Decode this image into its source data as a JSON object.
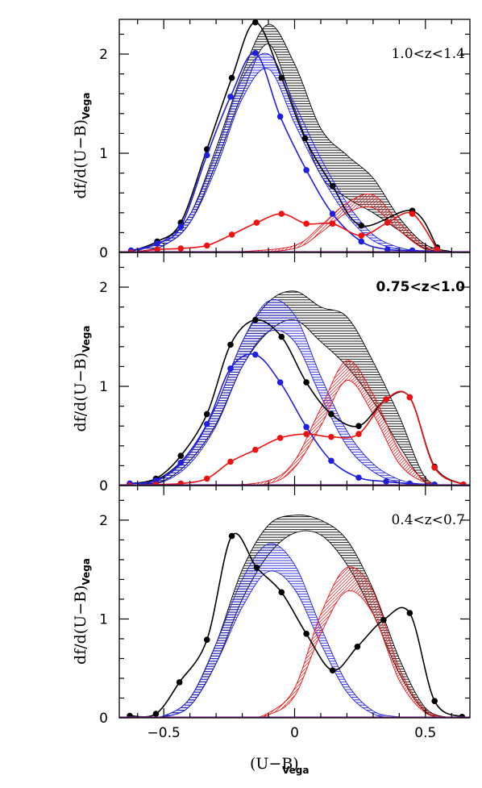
{
  "figure": {
    "xlabel_main": "(U−B)",
    "xlabel_sub": "Vega",
    "ylabel_main": "df/d(U−B)",
    "ylabel_sub": "Vega",
    "colors": {
      "total": "#000000",
      "blue": "#1f1fe0",
      "red": "#ee1111",
      "axis": "#000000"
    }
  },
  "chart_data": [
    {
      "type": "line",
      "panel_label": "1.0<z<1.4",
      "label_bold": false,
      "xlim": [
        -0.67,
        0.67
      ],
      "ylim": [
        0,
        2.35
      ],
      "xticks": [
        -0.5,
        0,
        0.5
      ],
      "xtick_labels": [
        "−0.5",
        "0",
        "0.5"
      ],
      "yticks": [
        0,
        1,
        2
      ],
      "ytick_labels": [
        "0",
        "1",
        "2"
      ],
      "show_xtick_labels": false,
      "series": [
        {
          "color": "total",
          "points": [
            [
              -0.625,
              0.01
            ],
            [
              -0.525,
              0.11
            ],
            [
              -0.435,
              0.3
            ],
            [
              -0.335,
              1.04
            ],
            [
              -0.24,
              1.76
            ],
            [
              -0.15,
              2.32
            ],
            [
              -0.05,
              1.76
            ],
            [
              0.04,
              1.15
            ],
            [
              0.145,
              0.67
            ],
            [
              0.255,
              0.27
            ],
            [
              0.45,
              0.42
            ],
            [
              0.545,
              0.05
            ]
          ]
        },
        {
          "color": "blue",
          "points": [
            [
              -0.625,
              0.02
            ],
            [
              -0.525,
              0.09
            ],
            [
              -0.435,
              0.26
            ],
            [
              -0.335,
              0.98
            ],
            [
              -0.245,
              1.57
            ],
            [
              -0.15,
              2.01
            ],
            [
              -0.055,
              1.37
            ],
            [
              0.045,
              0.83
            ],
            [
              0.145,
              0.39
            ],
            [
              0.255,
              0.11
            ],
            [
              0.355,
              0.03
            ],
            [
              0.45,
              0.02
            ],
            [
              0.545,
              0.01
            ]
          ]
        },
        {
          "color": "red",
          "points": [
            [
              -0.625,
              0.0
            ],
            [
              -0.525,
              0.03
            ],
            [
              -0.435,
              0.04
            ],
            [
              -0.335,
              0.07
            ],
            [
              -0.24,
              0.18
            ],
            [
              -0.145,
              0.3
            ],
            [
              -0.05,
              0.39
            ],
            [
              0.045,
              0.29
            ],
            [
              0.145,
              0.29
            ],
            [
              0.255,
              0.17
            ],
            [
              0.355,
              0.3
            ],
            [
              0.45,
              0.39
            ],
            [
              0.545,
              0.03
            ]
          ]
        }
      ],
      "bands": [
        {
          "color": "total",
          "x": [
            -0.6,
            -0.5,
            -0.4,
            -0.3,
            -0.2,
            -0.1,
            0.0,
            0.1,
            0.2,
            0.3,
            0.4,
            0.5,
            0.6
          ],
          "upper": [
            0.02,
            0.12,
            0.38,
            1.05,
            1.8,
            2.3,
            1.9,
            1.25,
            0.98,
            0.75,
            0.35,
            0.08,
            0.01
          ],
          "lower": [
            0.01,
            0.07,
            0.3,
            0.9,
            1.6,
            2.1,
            1.45,
            0.78,
            0.55,
            0.4,
            0.22,
            0.04,
            0.0
          ]
        },
        {
          "color": "blue",
          "x": [
            -0.6,
            -0.5,
            -0.4,
            -0.3,
            -0.2,
            -0.1,
            0.0,
            0.1,
            0.2,
            0.3,
            0.4,
            0.5,
            0.6
          ],
          "upper": [
            0.02,
            0.12,
            0.38,
            1.0,
            1.75,
            2.0,
            1.5,
            0.95,
            0.5,
            0.18,
            0.05,
            0.01,
            0.0
          ],
          "lower": [
            0.01,
            0.07,
            0.3,
            0.85,
            1.55,
            1.85,
            1.3,
            0.78,
            0.37,
            0.12,
            0.03,
            0.0,
            0.0
          ]
        },
        {
          "color": "red",
          "x": [
            -0.6,
            -0.4,
            -0.2,
            0.0,
            0.1,
            0.2,
            0.3,
            0.4,
            0.5,
            0.6
          ],
          "upper": [
            0.0,
            0.0,
            0.01,
            0.07,
            0.27,
            0.5,
            0.58,
            0.3,
            0.06,
            0.0
          ],
          "lower": [
            0.0,
            0.0,
            0.0,
            0.04,
            0.2,
            0.4,
            0.45,
            0.22,
            0.03,
            0.0
          ]
        }
      ]
    },
    {
      "type": "line",
      "panel_label": "0.75<z<1.0",
      "label_bold": true,
      "xlim": [
        -0.67,
        0.67
      ],
      "ylim": [
        0,
        2.35
      ],
      "xticks": [
        -0.5,
        0,
        0.5
      ],
      "xtick_labels": [
        "−0.5",
        "0",
        "0.5"
      ],
      "yticks": [
        0,
        1,
        2
      ],
      "ytick_labels": [
        "0",
        "1",
        "2"
      ],
      "show_xtick_labels": false,
      "series": [
        {
          "color": "total",
          "points": [
            [
              -0.63,
              0.02
            ],
            [
              -0.53,
              0.07
            ],
            [
              -0.435,
              0.3
            ],
            [
              -0.335,
              0.72
            ],
            [
              -0.245,
              1.42
            ],
            [
              -0.15,
              1.67
            ],
            [
              -0.05,
              1.5
            ],
            [
              0.045,
              1.04
            ],
            [
              0.14,
              0.72
            ],
            [
              0.245,
              0.6
            ],
            [
              0.35,
              0.87
            ],
            [
              0.44,
              0.89
            ],
            [
              0.535,
              0.19
            ],
            [
              0.645,
              0.01
            ]
          ]
        },
        {
          "color": "blue",
          "points": [
            [
              -0.63,
              0.02
            ],
            [
              -0.53,
              0.05
            ],
            [
              -0.435,
              0.23
            ],
            [
              -0.335,
              0.62
            ],
            [
              -0.245,
              1.18
            ],
            [
              -0.15,
              1.32
            ],
            [
              -0.055,
              1.04
            ],
            [
              0.045,
              0.59
            ],
            [
              0.14,
              0.25
            ],
            [
              0.245,
              0.08
            ],
            [
              0.35,
              0.04
            ],
            [
              0.44,
              0.02
            ],
            [
              0.535,
              0.01
            ]
          ]
        },
        {
          "color": "red",
          "points": [
            [
              -0.63,
              0.0
            ],
            [
              -0.53,
              0.01
            ],
            [
              -0.435,
              0.02
            ],
            [
              -0.335,
              0.07
            ],
            [
              -0.245,
              0.24
            ],
            [
              -0.15,
              0.36
            ],
            [
              -0.055,
              0.48
            ],
            [
              0.045,
              0.52
            ],
            [
              0.14,
              0.49
            ],
            [
              0.245,
              0.52
            ],
            [
              0.35,
              0.87
            ],
            [
              0.44,
              0.89
            ],
            [
              0.535,
              0.18
            ],
            [
              0.645,
              0.01
            ]
          ]
        }
      ],
      "bands": [
        {
          "color": "total",
          "x": [
            -0.6,
            -0.5,
            -0.4,
            -0.3,
            -0.2,
            -0.1,
            0.0,
            0.1,
            0.2,
            0.3,
            0.4,
            0.5,
            0.6
          ],
          "upper": [
            0.02,
            0.1,
            0.35,
            0.8,
            1.45,
            1.85,
            1.96,
            1.8,
            1.7,
            1.25,
            0.7,
            0.08,
            0.0
          ],
          "lower": [
            0.01,
            0.05,
            0.25,
            0.62,
            1.2,
            1.55,
            1.67,
            1.45,
            1.2,
            0.85,
            0.4,
            0.03,
            0.0
          ]
        },
        {
          "color": "blue",
          "x": [
            -0.6,
            -0.5,
            -0.4,
            -0.3,
            -0.2,
            -0.1,
            0.0,
            0.1,
            0.2,
            0.3,
            0.4,
            0.5,
            0.6
          ],
          "upper": [
            0.01,
            0.08,
            0.32,
            0.8,
            1.45,
            1.86,
            1.72,
            1.1,
            0.55,
            0.22,
            0.06,
            0.01,
            0.0
          ],
          "lower": [
            0.01,
            0.04,
            0.22,
            0.6,
            1.2,
            1.55,
            1.45,
            0.9,
            0.4,
            0.14,
            0.03,
            0.0,
            0.0
          ]
        },
        {
          "color": "red",
          "x": [
            -0.6,
            -0.3,
            -0.1,
            0.0,
            0.1,
            0.2,
            0.3,
            0.4,
            0.5,
            0.6
          ],
          "upper": [
            0.0,
            0.0,
            0.05,
            0.25,
            0.78,
            1.26,
            0.92,
            0.35,
            0.05,
            0.0
          ],
          "lower": [
            0.0,
            0.0,
            0.02,
            0.18,
            0.6,
            1.06,
            0.72,
            0.22,
            0.03,
            0.0
          ]
        }
      ]
    },
    {
      "type": "line",
      "panel_label": "0.4<z<0.7",
      "label_bold": false,
      "xlim": [
        -0.67,
        0.67
      ],
      "ylim": [
        0,
        2.35
      ],
      "xticks": [
        -0.5,
        0,
        0.5
      ],
      "xtick_labels": [
        "−0.5",
        "0",
        "0.5"
      ],
      "yticks": [
        0,
        1,
        2
      ],
      "ytick_labels": [
        "0",
        "1",
        "2"
      ],
      "show_xtick_labels": true,
      "series": [
        {
          "color": "total",
          "points": [
            [
              -0.63,
              0.02
            ],
            [
              -0.53,
              0.04
            ],
            [
              -0.44,
              0.36
            ],
            [
              -0.335,
              0.79
            ],
            [
              -0.24,
              1.84
            ],
            [
              -0.145,
              1.52
            ],
            [
              -0.05,
              1.27
            ],
            [
              0.045,
              0.85
            ],
            [
              0.145,
              0.48
            ],
            [
              0.24,
              0.72
            ],
            [
              0.34,
              0.99
            ],
            [
              0.44,
              1.06
            ],
            [
              0.535,
              0.17
            ],
            [
              0.64,
              0.01
            ]
          ]
        }
      ],
      "bands": [
        {
          "color": "total",
          "x": [
            -0.6,
            -0.5,
            -0.4,
            -0.3,
            -0.2,
            -0.1,
            0.0,
            0.1,
            0.2,
            0.3,
            0.4,
            0.5,
            0.6
          ],
          "upper": [
            0.0,
            0.02,
            0.2,
            0.75,
            1.5,
            1.95,
            2.05,
            2.0,
            1.8,
            1.3,
            0.6,
            0.1,
            0.0
          ],
          "lower": [
            0.0,
            0.01,
            0.12,
            0.55,
            1.2,
            1.65,
            1.87,
            1.85,
            1.55,
            1.05,
            0.45,
            0.06,
            0.0
          ]
        },
        {
          "color": "blue",
          "x": [
            -0.6,
            -0.5,
            -0.4,
            -0.3,
            -0.2,
            -0.1,
            0.0,
            0.1,
            0.2,
            0.3,
            0.4,
            0.5
          ],
          "upper": [
            0.0,
            0.02,
            0.2,
            0.75,
            1.4,
            1.76,
            1.55,
            0.92,
            0.35,
            0.07,
            0.01,
            0.0
          ],
          "lower": [
            0.0,
            0.01,
            0.12,
            0.55,
            1.12,
            1.48,
            1.3,
            0.75,
            0.26,
            0.04,
            0.0,
            0.0
          ]
        },
        {
          "color": "red",
          "x": [
            -0.5,
            -0.2,
            -0.1,
            0.0,
            0.1,
            0.2,
            0.3,
            0.4,
            0.5,
            0.6
          ],
          "upper": [
            0.0,
            0.0,
            0.05,
            0.3,
            1.05,
            1.52,
            1.28,
            0.5,
            0.08,
            0.0
          ],
          "lower": [
            0.0,
            0.0,
            0.03,
            0.22,
            0.85,
            1.28,
            1.05,
            0.38,
            0.05,
            0.0
          ]
        }
      ]
    }
  ]
}
